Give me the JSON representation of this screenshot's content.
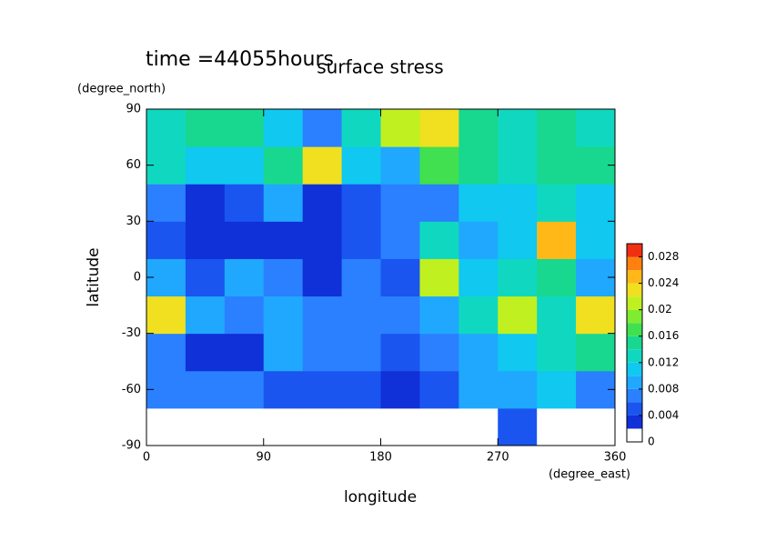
{
  "chart_data": {
    "type": "heatmap",
    "title": "surface stress",
    "subtitle": "time =44055hours",
    "x_label": "longitude",
    "x_unit": "(degree_east)",
    "y_label": "latitude",
    "y_unit": "(degree_north)",
    "x_edges": [
      0,
      30,
      60,
      90,
      120,
      150,
      180,
      210,
      240,
      270,
      300,
      330,
      360
    ],
    "y_edges": [
      -90,
      -70,
      -50,
      -30,
      -10,
      10,
      30,
      50,
      70,
      90
    ],
    "z": [
      [
        0,
        0,
        0,
        0,
        0,
        0,
        0,
        0,
        0,
        0.004,
        0,
        0
      ],
      [
        0.006,
        0.006,
        0.006,
        0.005,
        0.004,
        0.004,
        0.003,
        0.004,
        0.008,
        0.008,
        0.01,
        0.006
      ],
      [
        0.006,
        0.003,
        0.002,
        0.008,
        0.006,
        0.006,
        0.005,
        0.006,
        0.008,
        0.01,
        0.012,
        0.014
      ],
      [
        0.022,
        0.008,
        0.006,
        0.008,
        0.006,
        0.006,
        0.006,
        0.008,
        0.012,
        0.02,
        0.012,
        0.022
      ],
      [
        0.008,
        0.004,
        0.008,
        0.006,
        0.002,
        0.006,
        0.004,
        0.02,
        0.01,
        0.012,
        0.014,
        0.008
      ],
      [
        0.004,
        0.002,
        0.003,
        0.002,
        0.003,
        0.004,
        0.006,
        0.012,
        0.008,
        0.01,
        0.024,
        0.01
      ],
      [
        0.006,
        0.002,
        0.004,
        0.008,
        0.002,
        0.004,
        0.006,
        0.006,
        0.01,
        0.01,
        0.012,
        0.01
      ],
      [
        0.012,
        0.01,
        0.01,
        0.014,
        0.022,
        0.01,
        0.008,
        0.016,
        0.014,
        0.012,
        0.014,
        0.014
      ],
      [
        0.012,
        0.014,
        0.014,
        0.01,
        0.006,
        0.012,
        0.02,
        0.022,
        0.014,
        0.012,
        0.014,
        0.012
      ]
    ],
    "xlim": [
      0,
      360
    ],
    "xticks": [
      0,
      90,
      180,
      270,
      360
    ],
    "ylim": [
      -90,
      90
    ],
    "yticks": [
      -90,
      -60,
      -30,
      0,
      30,
      60,
      90
    ],
    "levels": [
      0,
      0.002,
      0.004,
      0.006,
      0.008,
      0.01,
      0.012,
      0.014,
      0.016,
      0.018,
      0.02,
      0.022,
      0.024,
      0.026,
      0.028,
      0.03
    ],
    "colors": [
      "#ffffff",
      "#1030d8",
      "#1a55f0",
      "#2a80ff",
      "#20a8ff",
      "#10c8f0",
      "#10d8c0",
      "#18d890",
      "#40e050",
      "#80ec30",
      "#c0f020",
      "#f0e020",
      "#ffb818",
      "#ff8010",
      "#f03010"
    ],
    "clim": [
      0,
      0.03
    ],
    "cticks": [
      0,
      0.004,
      0.008,
      0.012,
      0.016,
      0.02,
      0.024,
      0.028
    ]
  }
}
